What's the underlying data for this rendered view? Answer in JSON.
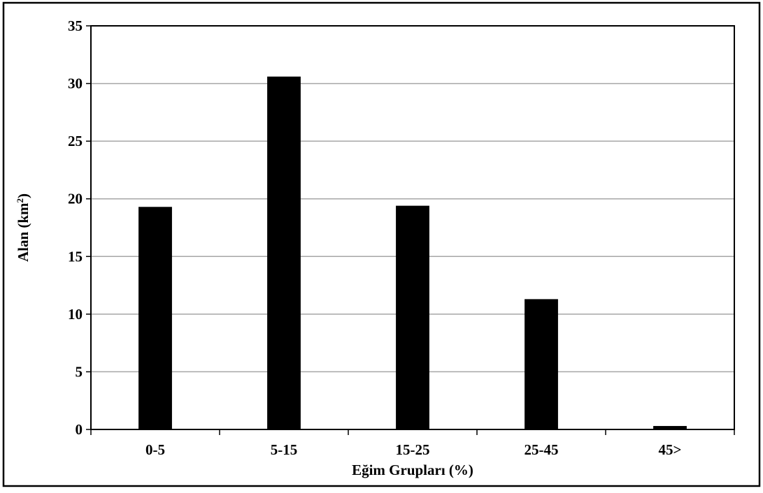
{
  "chart_data": {
    "type": "bar",
    "categories": [
      "0-5",
      "5-15",
      "15-25",
      "25-45",
      "45>"
    ],
    "values": [
      19.3,
      30.6,
      19.4,
      11.3,
      0.3
    ],
    "xlabel": "Eğim Grupları (%)",
    "ylabel_main": "Alan (km",
    "ylabel_sup": "2",
    "ylabel_close": ")",
    "ylim": [
      0,
      35
    ],
    "yticks": [
      "0",
      "5",
      "10",
      "15",
      "20",
      "25",
      "30",
      "35"
    ],
    "grid": true,
    "legend": "none",
    "bar_color": "#000000",
    "grid_color": "#a6a6a6"
  }
}
